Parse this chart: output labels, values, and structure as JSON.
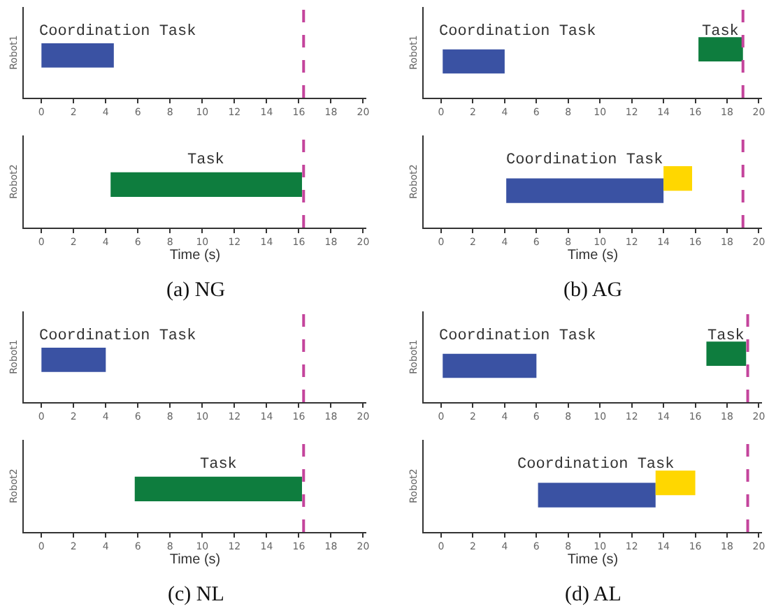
{
  "chart_data": [
    {
      "type": "bar",
      "orientation": "horizontal",
      "categories": [
        null
      ],
      "ylabel": "Robot1",
      "tick_labels": "x",
      "xlim": [
        -1.1,
        20.2
      ],
      "xticks": [
        0,
        2,
        4,
        6,
        8,
        10,
        12,
        14,
        16,
        18,
        20
      ],
      "series": [
        {
          "name": "Coordination Task",
          "color": "#3a52a3",
          "values": [
            4.5
          ],
          "base": [
            0
          ]
        }
      ],
      "ref_lines": [
        {
          "axis": "x",
          "value": 16.3,
          "color": "#c4449c",
          "line_style": "dashed"
        }
      ]
    },
    {
      "type": "bar",
      "orientation": "horizontal",
      "categories": [
        null
      ],
      "ylabel": "Robot2",
      "xlabel": "Time (s)",
      "tick_labels": "x",
      "xlim": [
        -1.1,
        20.2
      ],
      "xticks": [
        0,
        2,
        4,
        6,
        8,
        10,
        12,
        14,
        16,
        18,
        20
      ],
      "series": [
        {
          "name": "Task",
          "color": "#0e7d3e",
          "values": [
            11.9
          ],
          "base": [
            4.3
          ]
        }
      ],
      "ref_lines": [
        {
          "axis": "x",
          "value": 16.3,
          "color": "#c4449c",
          "line_style": "dashed"
        }
      ],
      "annotations": [
        "(a) NG"
      ]
    },
    {
      "type": "bar",
      "orientation": "horizontal",
      "categories": [
        null
      ],
      "ylabel": "Robot1",
      "tick_labels": "x",
      "xlim": [
        -1.1,
        20.2
      ],
      "xticks": [
        0,
        2,
        4,
        6,
        8,
        10,
        12,
        14,
        16,
        18,
        20
      ],
      "series": [
        {
          "name": "Coordination Task",
          "color": "#3a52a3",
          "values": [
            3.9
          ],
          "base": [
            0.1
          ]
        },
        {
          "name": "Task",
          "color": "#0e7d3e",
          "values": [
            2.8
          ],
          "base": [
            16.2
          ]
        }
      ],
      "ref_lines": [
        {
          "axis": "x",
          "value": 19.0,
          "color": "#c4449c",
          "line_style": "dashed"
        }
      ]
    },
    {
      "type": "bar",
      "orientation": "horizontal",
      "categories": [
        null
      ],
      "ylabel": "Robot2",
      "xlabel": "Time (s)",
      "tick_labels": "x",
      "xlim": [
        -1.1,
        20.2
      ],
      "xticks": [
        0,
        2,
        4,
        6,
        8,
        10,
        12,
        14,
        16,
        18,
        20
      ],
      "series": [
        {
          "name": "Coordination Task",
          "color": "#3a52a3",
          "values": [
            9.9
          ],
          "base": [
            4.1
          ]
        },
        {
          "color": "#ffd700",
          "values": [
            1.8
          ],
          "base": [
            14.0
          ]
        }
      ],
      "ref_lines": [
        {
          "axis": "x",
          "value": 19.0,
          "color": "#c4449c",
          "line_style": "dashed"
        }
      ],
      "annotations": [
        "(b) AG"
      ]
    },
    {
      "type": "bar",
      "orientation": "horizontal",
      "categories": [
        null
      ],
      "ylabel": "Robot1",
      "tick_labels": "x",
      "xlim": [
        -1.1,
        20.2
      ],
      "xticks": [
        0,
        2,
        4,
        6,
        8,
        10,
        12,
        14,
        16,
        18,
        20
      ],
      "series": [
        {
          "name": "Coordination Task",
          "color": "#3a52a3",
          "values": [
            4.0
          ],
          "base": [
            0
          ]
        }
      ],
      "ref_lines": [
        {
          "axis": "x",
          "value": 16.3,
          "color": "#c4449c",
          "line_style": "dashed"
        }
      ]
    },
    {
      "type": "bar",
      "orientation": "horizontal",
      "categories": [
        null
      ],
      "ylabel": "Robot2",
      "xlabel": "Time (s)",
      "tick_labels": "x",
      "xlim": [
        -1.1,
        20.2
      ],
      "xticks": [
        0,
        2,
        4,
        6,
        8,
        10,
        12,
        14,
        16,
        18,
        20
      ],
      "series": [
        {
          "name": "Task",
          "color": "#0e7d3e",
          "values": [
            10.4
          ],
          "base": [
            5.8
          ]
        }
      ],
      "ref_lines": [
        {
          "axis": "x",
          "value": 16.3,
          "color": "#c4449c",
          "line_style": "dashed"
        }
      ],
      "annotations": [
        "(c) NL"
      ]
    },
    {
      "type": "bar",
      "orientation": "horizontal",
      "categories": [
        null
      ],
      "ylabel": "Robot1",
      "tick_labels": "x",
      "xlim": [
        -1.1,
        20.2
      ],
      "xticks": [
        0,
        2,
        4,
        6,
        8,
        10,
        12,
        14,
        16,
        18,
        20
      ],
      "series": [
        {
          "name": "Coordination Task",
          "color": "#3a52a3",
          "values": [
            5.9
          ],
          "base": [
            0.1
          ]
        },
        {
          "name": "Task",
          "color": "#0e7d3e",
          "values": [
            2.5
          ],
          "base": [
            16.7
          ]
        }
      ],
      "ref_lines": [
        {
          "axis": "x",
          "value": 19.3,
          "color": "#c4449c",
          "line_style": "dashed"
        }
      ]
    },
    {
      "type": "bar",
      "orientation": "horizontal",
      "categories": [
        null
      ],
      "ylabel": "Robot2",
      "xlabel": "Time (s)",
      "tick_labels": "x",
      "xlim": [
        -1.1,
        20.2
      ],
      "xticks": [
        0,
        2,
        4,
        6,
        8,
        10,
        12,
        14,
        16,
        18,
        20
      ],
      "series": [
        {
          "name": "Coordination Task",
          "color": "#3a52a3",
          "values": [
            7.4
          ],
          "base": [
            6.1
          ]
        },
        {
          "color": "#ffd700",
          "values": [
            2.5
          ],
          "base": [
            13.5
          ]
        }
      ],
      "ref_lines": [
        {
          "axis": "x",
          "value": 19.3,
          "color": "#c4449c",
          "line_style": "dashed"
        }
      ],
      "annotations": [
        "(d) AL"
      ]
    }
  ]
}
